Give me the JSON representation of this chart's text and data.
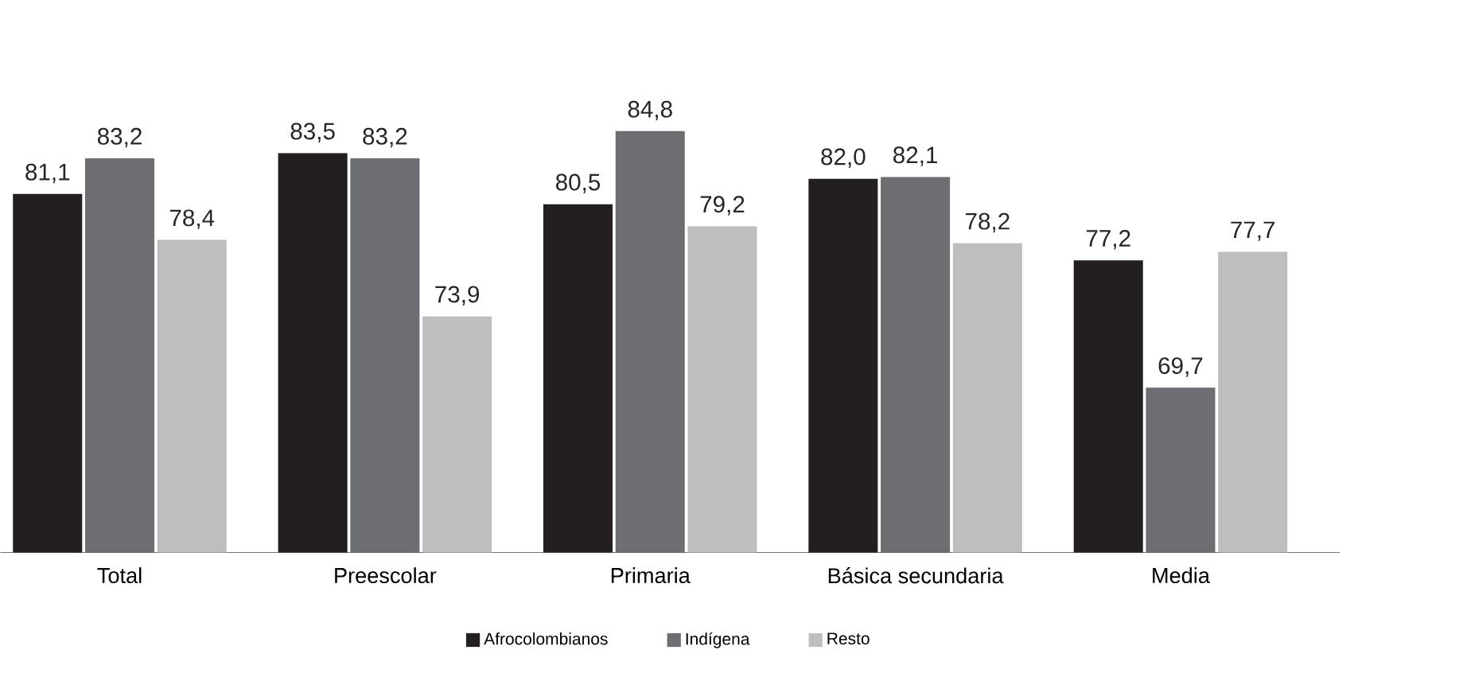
{
  "chart_data": {
    "type": "bar",
    "categories": [
      "Total",
      "Preescolar",
      "Primaria",
      "Básica secundaria",
      "Media"
    ],
    "series": [
      {
        "name": "Afrocolombianos",
        "color": "#231f20",
        "values": [
          81.1,
          83.5,
          80.5,
          82.0,
          77.2
        ],
        "value_labels": [
          "81,1",
          "83,5",
          "80,5",
          "82,0",
          "77,2"
        ]
      },
      {
        "name": "Indígena",
        "color": "#6d6e71",
        "values": [
          83.2,
          83.2,
          84.8,
          82.1,
          69.7
        ],
        "value_labels": [
          "83,2",
          "83,2",
          "84,8",
          "82,1",
          "69,7"
        ]
      },
      {
        "name": "Resto",
        "color": "#bcbec0",
        "values": [
          78.4,
          73.9,
          79.2,
          78.2,
          77.7
        ],
        "value_labels": [
          "78,4",
          "73,9",
          "79,2",
          "78,2",
          "77,7"
        ]
      }
    ],
    "ylim": [
      60,
      84.8
    ],
    "legend": "bottom",
    "grid": false
  }
}
